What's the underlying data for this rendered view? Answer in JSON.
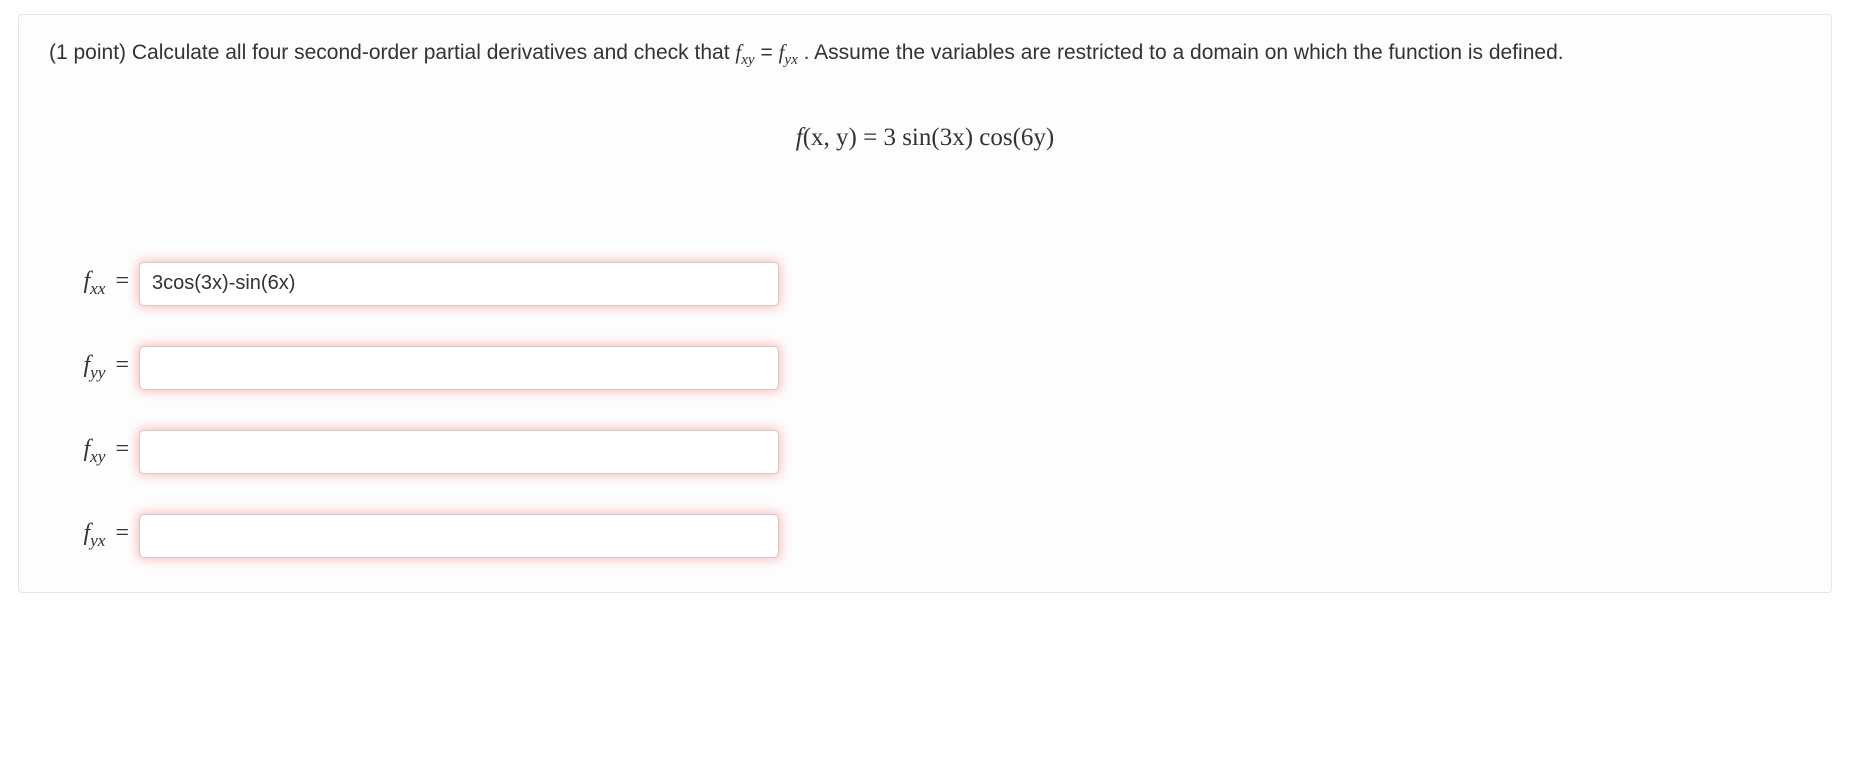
{
  "problem": {
    "points_prefix": "(1 point) ",
    "text_part1": "Calculate all four second-order partial derivatives and check that ",
    "fxy_symbol": "f",
    "fxy_sub": "xy",
    "equals": " = ",
    "fyx_symbol": "f",
    "fyx_sub": "yx",
    "text_part2": " . Assume the variables are restricted to a domain on which the function is defined."
  },
  "equation": {
    "lhs_f": "f",
    "lhs_args": "(x, y)",
    "eq": " = ",
    "rhs": "3 sin(3x) cos(6y)"
  },
  "answers": [
    {
      "label_f": "f",
      "label_sub": "xx",
      "value": "3cos(3x)-sin(6x)"
    },
    {
      "label_f": "f",
      "label_sub": "yy",
      "value": ""
    },
    {
      "label_f": "f",
      "label_sub": "xy",
      "value": ""
    },
    {
      "label_f": "f",
      "label_sub": "yx",
      "value": ""
    }
  ],
  "styles": {
    "input_glow_color": "#ff6666",
    "border_color": "#e5e5e5",
    "input_border_color": "#cccccc",
    "background": "#fdfdfd"
  }
}
